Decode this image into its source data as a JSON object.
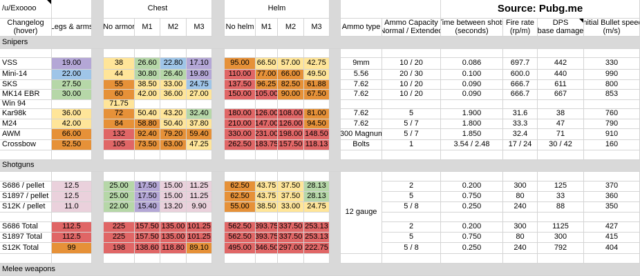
{
  "header": {
    "user": "/u/Exoooo",
    "changelog": [
      "Changelog",
      "(hover)"
    ],
    "legs_arms": "Legs & arms",
    "chest_group": "Chest",
    "helm_group": "Helm",
    "chest_cols": [
      "No armor",
      "M1",
      "M2",
      "M3"
    ],
    "helm_cols": [
      "No helm",
      "M1",
      "M2",
      "M3"
    ],
    "source": "Source: Pubg.me",
    "ammo_type": "Ammo type",
    "ammo_capacity": [
      "Ammo Capacity",
      "Normal / Extended"
    ],
    "time_between": [
      "Time between shots",
      "(seconds)"
    ],
    "fire_rate": [
      "Fire rate",
      "(rp/m)"
    ],
    "dps": [
      "DPS",
      "(base damage)"
    ],
    "bullet_speed": [
      "Initial Bullet speed",
      "(m/s)"
    ]
  },
  "sections": {
    "snipers": "Snipers",
    "shotguns": "Shotguns",
    "melee": "Melee weapons"
  },
  "snipers": [
    {
      "name": "VSS",
      "legs": "19.00",
      "legs_c": "purple",
      "chest": [
        "38",
        "26.60",
        "22.80",
        "17.10"
      ],
      "chest_c": [
        "yellow",
        "green",
        "blue",
        "purple"
      ],
      "helm": [
        "95.00",
        "66.50",
        "57.00",
        "42.75"
      ],
      "helm_c": [
        "orange",
        "yellow",
        "yellow",
        "yellow"
      ],
      "ammo": "9mm",
      "cap": "10 / 20",
      "time": "0.086",
      "rate": "697.7",
      "dps": "442",
      "speed": "330"
    },
    {
      "name": "Mini-14",
      "legs": "22.00",
      "legs_c": "blue",
      "chest": [
        "44",
        "30.80",
        "26.40",
        "19.80"
      ],
      "chest_c": [
        "yellow",
        "green",
        "green",
        "purple"
      ],
      "helm": [
        "110.00",
        "77.00",
        "66.00",
        "49.50"
      ],
      "helm_c": [
        "red",
        "orange",
        "orange",
        "yellow"
      ],
      "ammo": "5.56",
      "cap": "20 / 30",
      "time": "0.100",
      "rate": "600.0",
      "dps": "440",
      "speed": "990"
    },
    {
      "name": "SKS",
      "legs": "27.50",
      "legs_c": "green",
      "chest": [
        "55",
        "38.50",
        "33.00",
        "24.75"
      ],
      "chest_c": [
        "orange",
        "yellow",
        "yellow",
        "blue"
      ],
      "helm": [
        "137.50",
        "96.25",
        "82.50",
        "61.88"
      ],
      "helm_c": [
        "red",
        "orange",
        "orange",
        "orange"
      ],
      "ammo": "7.62",
      "cap": "10 / 20",
      "time": "0.090",
      "rate": "666.7",
      "dps": "611",
      "speed": "800"
    },
    {
      "name": "MK14 EBR",
      "legs": "30.00",
      "legs_c": "green",
      "chest": [
        "60",
        "42.00",
        "36.00",
        "27.00"
      ],
      "chest_c": [
        "orange",
        "yellow",
        "yellow",
        "yellow"
      ],
      "helm": [
        "150.00",
        "105.00",
        "90.00",
        "67.50"
      ],
      "helm_c": [
        "red",
        "red",
        "orange",
        "orange"
      ],
      "ammo": "7.62",
      "cap": "10 / 20",
      "time": "0.090",
      "rate": "666.7",
      "dps": "667",
      "speed": "853"
    },
    {
      "name": "Win 94",
      "legs": "",
      "legs_c": "",
      "chest": [
        "71.75",
        "",
        "",
        ""
      ],
      "chest_c": [
        "yellow",
        "",
        "",
        ""
      ],
      "helm": [
        "",
        "",
        "",
        ""
      ],
      "helm_c": [
        "",
        "",
        "",
        ""
      ],
      "ammo": "",
      "cap": "",
      "time": "",
      "rate": "",
      "dps": "",
      "speed": ""
    },
    {
      "name": "Kar98k",
      "legs": "36.00",
      "legs_c": "yellow",
      "chest": [
        "72",
        "50.40",
        "43.20",
        "32.40"
      ],
      "chest_c": [
        "orange",
        "yellow",
        "yellow",
        "green"
      ],
      "helm": [
        "180.00",
        "126.00",
        "108.00",
        "81.00"
      ],
      "helm_c": [
        "red",
        "red",
        "red",
        "orange"
      ],
      "ammo": "7.62",
      "cap": "5",
      "time": "1.900",
      "rate": "31.6",
      "dps": "38",
      "speed": "760"
    },
    {
      "name": "M24",
      "legs": "42.00",
      "legs_c": "yellow",
      "chest": [
        "84",
        "58.80",
        "50.40",
        "37.80"
      ],
      "chest_c": [
        "orange",
        "orange",
        "yellow",
        "yellow"
      ],
      "helm": [
        "210.00",
        "147.00",
        "126.00",
        "94.50"
      ],
      "helm_c": [
        "red",
        "red",
        "red",
        "orange"
      ],
      "ammo": "7.62",
      "cap": "5 / 7",
      "time": "1.800",
      "rate": "33.3",
      "dps": "47",
      "speed": "790"
    },
    {
      "name": "AWM",
      "legs": "66.00",
      "legs_c": "orange",
      "chest": [
        "132",
        "92.40",
        "79.20",
        "59.40"
      ],
      "chest_c": [
        "red",
        "orange",
        "orange",
        "orange"
      ],
      "helm": [
        "330.00",
        "231.00",
        "198.00",
        "148.50"
      ],
      "helm_c": [
        "red",
        "red",
        "red",
        "red"
      ],
      "ammo": ".300 Magnum",
      "cap": "5 / 7",
      "time": "1.850",
      "rate": "32.4",
      "dps": "71",
      "speed": "910"
    },
    {
      "name": "Crossbow",
      "legs": "52.50",
      "legs_c": "orange",
      "chest": [
        "105",
        "73.50",
        "63.00",
        "47.25"
      ],
      "chest_c": [
        "red",
        "orange",
        "orange",
        "yellow"
      ],
      "helm": [
        "262.50",
        "183.75",
        "157.50",
        "118.13"
      ],
      "helm_c": [
        "red",
        "red",
        "red",
        "red"
      ],
      "ammo": "Bolts",
      "cap": "1",
      "time": "3.54 / 2.48",
      "rate": "17 / 24",
      "dps": "30 / 42",
      "speed": "160"
    }
  ],
  "shotgun_ammo": "12 gauge",
  "shotguns": [
    {
      "name": "S686 / pellet",
      "legs": "12.5",
      "legs_c": "pink",
      "chest": [
        "25.00",
        "17.50",
        "15.00",
        "11.25"
      ],
      "chest_c": [
        "green",
        "purple",
        "pink",
        "pink"
      ],
      "helm": [
        "62.50",
        "43.75",
        "37.50",
        "28.13"
      ],
      "helm_c": [
        "orange",
        "yellow",
        "yellow",
        "green"
      ],
      "cap": "2",
      "time": "0.200",
      "rate": "300",
      "dps": "125",
      "speed": "370"
    },
    {
      "name": "S1897 / pellet",
      "legs": "12.5",
      "legs_c": "pink",
      "chest": [
        "25.00",
        "17.50",
        "15.00",
        "11.25"
      ],
      "chest_c": [
        "green",
        "purple",
        "pink",
        "pink"
      ],
      "helm": [
        "62.50",
        "43.75",
        "37.50",
        "28.13"
      ],
      "helm_c": [
        "orange",
        "yellow",
        "yellow",
        "green"
      ],
      "cap": "5",
      "time": "0.750",
      "rate": "80",
      "dps": "33",
      "speed": "360"
    },
    {
      "name": "S12K  / pellet",
      "legs": "11.0",
      "legs_c": "pink",
      "chest": [
        "22.00",
        "15.40",
        "13.20",
        "9.90"
      ],
      "chest_c": [
        "green",
        "purple",
        "pink",
        "pink"
      ],
      "helm": [
        "55.00",
        "38.50",
        "33.00",
        "24.75"
      ],
      "helm_c": [
        "orange",
        "yellow",
        "yellow",
        "yellow"
      ],
      "cap": "5 / 8",
      "time": "0.250",
      "rate": "240",
      "dps": "88",
      "speed": "350"
    },
    {
      "name": "S686 Total",
      "legs": "112.5",
      "legs_c": "red",
      "chest": [
        "225",
        "157.50",
        "135.00",
        "101.25"
      ],
      "chest_c": [
        "red",
        "red",
        "red",
        "red"
      ],
      "helm": [
        "562.50",
        "393.75",
        "337.50",
        "253.13"
      ],
      "helm_c": [
        "red",
        "red",
        "red",
        "red"
      ],
      "cap": "2",
      "time": "0.200",
      "rate": "300",
      "dps": "1125",
      "speed": "427"
    },
    {
      "name": "S1897 Total",
      "legs": "112.5",
      "legs_c": "red",
      "chest": [
        "225",
        "157.50",
        "135.00",
        "101.25"
      ],
      "chest_c": [
        "red",
        "red",
        "red",
        "red"
      ],
      "helm": [
        "562.50",
        "393.75",
        "337.50",
        "253.13"
      ],
      "helm_c": [
        "red",
        "red",
        "red",
        "red"
      ],
      "cap": "5",
      "time": "0.750",
      "rate": "80",
      "dps": "300",
      "speed": "415"
    },
    {
      "name": "S12K Total",
      "legs": "99",
      "legs_c": "orange",
      "chest": [
        "198",
        "138.60",
        "118.80",
        "89.10"
      ],
      "chest_c": [
        "red",
        "red",
        "red",
        "orange"
      ],
      "helm": [
        "495.00",
        "346.50",
        "297.00",
        "222.75"
      ],
      "helm_c": [
        "red",
        "red",
        "red",
        "red"
      ],
      "cap": "5 / 8",
      "time": "0.250",
      "rate": "240",
      "dps": "792",
      "speed": "404"
    }
  ]
}
